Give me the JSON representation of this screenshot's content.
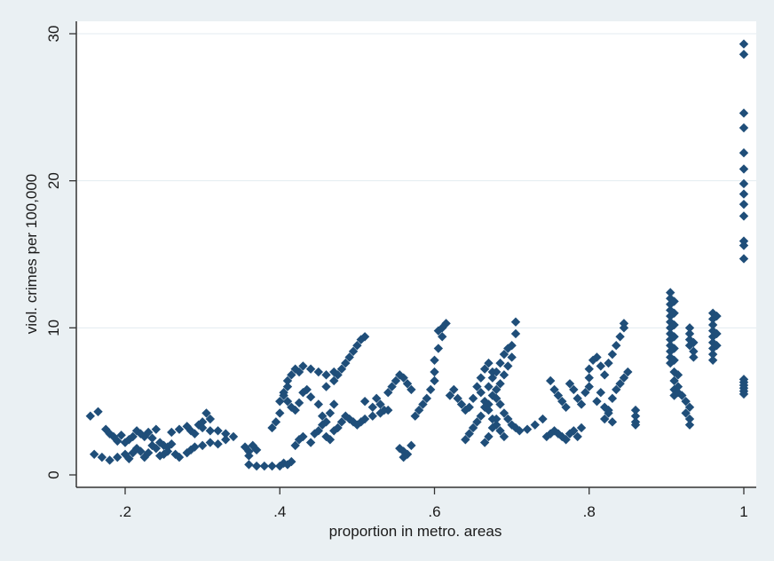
{
  "chart_data": {
    "type": "scatter",
    "title": "",
    "xlabel": "proportion in metro. areas",
    "ylabel": "viol. crimes per 100,000",
    "xlim": [
      0.15,
      1.0
    ],
    "ylim": [
      0,
      30
    ],
    "x_ticks": [
      {
        "value": 0.2,
        "label": ".2"
      },
      {
        "value": 0.4,
        "label": ".4"
      },
      {
        "value": 0.6,
        "label": ".6"
      },
      {
        "value": 0.8,
        "label": ".8"
      },
      {
        "value": 1.0,
        "label": "1"
      }
    ],
    "y_ticks": [
      {
        "value": 0,
        "label": "0"
      },
      {
        "value": 10,
        "label": "10"
      },
      {
        "value": 20,
        "label": "20"
      },
      {
        "value": 30,
        "label": "30"
      }
    ],
    "grid": "horizontal",
    "legend": "none",
    "marker": "diamond",
    "colors": {
      "marker": "#1f4e79",
      "plot_bg": "#ffffff",
      "frame_bg": "#eaf0f3",
      "grid": "#e3ebf0"
    },
    "points": [
      [
        0.155,
        4.0
      ],
      [
        0.165,
        4.3
      ],
      [
        0.16,
        1.4
      ],
      [
        0.17,
        1.2
      ],
      [
        0.18,
        1.0
      ],
      [
        0.19,
        1.2
      ],
      [
        0.175,
        3.1
      ],
      [
        0.18,
        2.8
      ],
      [
        0.185,
        2.6
      ],
      [
        0.19,
        2.3
      ],
      [
        0.195,
        2.7
      ],
      [
        0.2,
        2.2
      ],
      [
        0.205,
        2.4
      ],
      [
        0.21,
        2.6
      ],
      [
        0.215,
        3.0
      ],
      [
        0.22,
        2.8
      ],
      [
        0.2,
        1.4
      ],
      [
        0.205,
        1.1
      ],
      [
        0.21,
        1.5
      ],
      [
        0.215,
        1.8
      ],
      [
        0.22,
        1.6
      ],
      [
        0.225,
        1.2
      ],
      [
        0.23,
        1.5
      ],
      [
        0.235,
        2.0
      ],
      [
        0.24,
        1.8
      ],
      [
        0.245,
        1.3
      ],
      [
        0.25,
        1.4
      ],
      [
        0.255,
        1.6
      ],
      [
        0.225,
        2.6
      ],
      [
        0.23,
        2.9
      ],
      [
        0.235,
        2.5
      ],
      [
        0.24,
        3.1
      ],
      [
        0.245,
        2.2
      ],
      [
        0.25,
        2.0
      ],
      [
        0.255,
        1.9
      ],
      [
        0.26,
        2.1
      ],
      [
        0.265,
        1.4
      ],
      [
        0.27,
        1.2
      ],
      [
        0.28,
        1.5
      ],
      [
        0.285,
        1.7
      ],
      [
        0.29,
        1.9
      ],
      [
        0.3,
        2.0
      ],
      [
        0.31,
        2.2
      ],
      [
        0.32,
        2.1
      ],
      [
        0.33,
        2.4
      ],
      [
        0.26,
        2.9
      ],
      [
        0.27,
        3.1
      ],
      [
        0.28,
        3.3
      ],
      [
        0.285,
        3.0
      ],
      [
        0.29,
        2.8
      ],
      [
        0.295,
        3.4
      ],
      [
        0.3,
        3.6
      ],
      [
        0.305,
        4.2
      ],
      [
        0.31,
        3.8
      ],
      [
        0.3,
        3.2
      ],
      [
        0.31,
        3.0
      ],
      [
        0.32,
        3.0
      ],
      [
        0.33,
        2.8
      ],
      [
        0.34,
        2.6
      ],
      [
        0.355,
        1.9
      ],
      [
        0.36,
        1.6
      ],
      [
        0.36,
        1.3
      ],
      [
        0.365,
        2.0
      ],
      [
        0.37,
        1.7
      ],
      [
        0.36,
        0.7
      ],
      [
        0.37,
        0.6
      ],
      [
        0.38,
        0.6
      ],
      [
        0.39,
        0.6
      ],
      [
        0.4,
        0.6
      ],
      [
        0.405,
        0.8
      ],
      [
        0.41,
        0.7
      ],
      [
        0.415,
        0.9
      ],
      [
        0.39,
        3.2
      ],
      [
        0.395,
        3.6
      ],
      [
        0.4,
        4.2
      ],
      [
        0.4,
        5.0
      ],
      [
        0.405,
        5.6
      ],
      [
        0.41,
        6.0
      ],
      [
        0.41,
        6.4
      ],
      [
        0.415,
        6.8
      ],
      [
        0.42,
        7.2
      ],
      [
        0.425,
        7.0
      ],
      [
        0.43,
        7.4
      ],
      [
        0.44,
        7.2
      ],
      [
        0.45,
        7.0
      ],
      [
        0.46,
        6.8
      ],
      [
        0.47,
        7.0
      ],
      [
        0.405,
        5.4
      ],
      [
        0.41,
        5.0
      ],
      [
        0.415,
        4.6
      ],
      [
        0.42,
        4.4
      ],
      [
        0.425,
        4.9
      ],
      [
        0.43,
        5.6
      ],
      [
        0.435,
        5.8
      ],
      [
        0.44,
        5.3
      ],
      [
        0.45,
        4.8
      ],
      [
        0.455,
        4.0
      ],
      [
        0.46,
        3.6
      ],
      [
        0.465,
        4.2
      ],
      [
        0.47,
        4.8
      ],
      [
        0.42,
        2.0
      ],
      [
        0.425,
        2.4
      ],
      [
        0.43,
        2.6
      ],
      [
        0.44,
        2.2
      ],
      [
        0.445,
        2.8
      ],
      [
        0.45,
        3.0
      ],
      [
        0.455,
        3.4
      ],
      [
        0.46,
        2.6
      ],
      [
        0.465,
        2.4
      ],
      [
        0.47,
        3.0
      ],
      [
        0.475,
        3.2
      ],
      [
        0.48,
        3.6
      ],
      [
        0.485,
        4.0
      ],
      [
        0.49,
        3.8
      ],
      [
        0.495,
        3.6
      ],
      [
        0.5,
        3.4
      ],
      [
        0.505,
        3.6
      ],
      [
        0.51,
        3.8
      ],
      [
        0.52,
        4.0
      ],
      [
        0.53,
        4.2
      ],
      [
        0.54,
        4.4
      ],
      [
        0.46,
        6.0
      ],
      [
        0.47,
        6.4
      ],
      [
        0.475,
        6.8
      ],
      [
        0.48,
        7.2
      ],
      [
        0.485,
        7.6
      ],
      [
        0.49,
        8.0
      ],
      [
        0.495,
        8.4
      ],
      [
        0.5,
        8.8
      ],
      [
        0.505,
        9.2
      ],
      [
        0.51,
        9.4
      ],
      [
        0.51,
        5.0
      ],
      [
        0.52,
        4.6
      ],
      [
        0.525,
        5.2
      ],
      [
        0.53,
        4.8
      ],
      [
        0.535,
        4.4
      ],
      [
        0.54,
        5.6
      ],
      [
        0.545,
        6.0
      ],
      [
        0.55,
        6.4
      ],
      [
        0.555,
        6.8
      ],
      [
        0.56,
        6.6
      ],
      [
        0.565,
        6.2
      ],
      [
        0.57,
        5.8
      ],
      [
        0.555,
        1.8
      ],
      [
        0.56,
        1.6
      ],
      [
        0.565,
        1.4
      ],
      [
        0.56,
        1.2
      ],
      [
        0.57,
        2.0
      ],
      [
        0.575,
        4.0
      ],
      [
        0.58,
        4.4
      ],
      [
        0.585,
        4.8
      ],
      [
        0.59,
        5.2
      ],
      [
        0.595,
        5.8
      ],
      [
        0.6,
        6.4
      ],
      [
        0.6,
        7.0
      ],
      [
        0.6,
        7.8
      ],
      [
        0.605,
        8.6
      ],
      [
        0.61,
        9.4
      ],
      [
        0.61,
        10.0
      ],
      [
        0.615,
        10.3
      ],
      [
        0.605,
        9.8
      ],
      [
        0.62,
        5.4
      ],
      [
        0.625,
        5.8
      ],
      [
        0.63,
        5.2
      ],
      [
        0.635,
        4.8
      ],
      [
        0.64,
        4.4
      ],
      [
        0.645,
        4.6
      ],
      [
        0.65,
        5.2
      ],
      [
        0.655,
        6.0
      ],
      [
        0.66,
        6.6
      ],
      [
        0.665,
        7.2
      ],
      [
        0.67,
        7.6
      ],
      [
        0.675,
        7.0
      ],
      [
        0.64,
        2.4
      ],
      [
        0.645,
        2.8
      ],
      [
        0.65,
        3.2
      ],
      [
        0.655,
        3.6
      ],
      [
        0.66,
        4.0
      ],
      [
        0.665,
        4.6
      ],
      [
        0.67,
        4.8
      ],
      [
        0.675,
        5.4
      ],
      [
        0.68,
        5.8
      ],
      [
        0.685,
        6.2
      ],
      [
        0.69,
        6.8
      ],
      [
        0.695,
        7.4
      ],
      [
        0.7,
        8.0
      ],
      [
        0.7,
        8.8
      ],
      [
        0.705,
        9.6
      ],
      [
        0.705,
        10.4
      ],
      [
        0.66,
        5.6
      ],
      [
        0.665,
        5.0
      ],
      [
        0.67,
        4.4
      ],
      [
        0.675,
        3.8
      ],
      [
        0.68,
        3.4
      ],
      [
        0.685,
        3.0
      ],
      [
        0.69,
        2.6
      ],
      [
        0.665,
        2.2
      ],
      [
        0.67,
        2.6
      ],
      [
        0.675,
        3.2
      ],
      [
        0.68,
        3.8
      ],
      [
        0.67,
        6.0
      ],
      [
        0.675,
        6.6
      ],
      [
        0.68,
        7.0
      ],
      [
        0.685,
        7.6
      ],
      [
        0.69,
        8.2
      ],
      [
        0.695,
        8.6
      ],
      [
        0.68,
        5.2
      ],
      [
        0.685,
        4.8
      ],
      [
        0.69,
        4.2
      ],
      [
        0.695,
        3.8
      ],
      [
        0.7,
        3.4
      ],
      [
        0.705,
        3.2
      ],
      [
        0.71,
        3.0
      ],
      [
        0.72,
        3.1
      ],
      [
        0.73,
        3.4
      ],
      [
        0.74,
        3.8
      ],
      [
        0.75,
        6.4
      ],
      [
        0.755,
        5.8
      ],
      [
        0.76,
        5.4
      ],
      [
        0.765,
        5.0
      ],
      [
        0.77,
        4.6
      ],
      [
        0.775,
        6.2
      ],
      [
        0.78,
        5.8
      ],
      [
        0.785,
        5.2
      ],
      [
        0.79,
        4.8
      ],
      [
        0.795,
        5.6
      ],
      [
        0.8,
        6.0
      ],
      [
        0.8,
        6.6
      ],
      [
        0.745,
        2.6
      ],
      [
        0.75,
        2.8
      ],
      [
        0.755,
        3.0
      ],
      [
        0.76,
        2.8
      ],
      [
        0.765,
        2.6
      ],
      [
        0.77,
        2.4
      ],
      [
        0.775,
        2.8
      ],
      [
        0.78,
        3.0
      ],
      [
        0.785,
        2.6
      ],
      [
        0.79,
        3.2
      ],
      [
        0.8,
        7.2
      ],
      [
        0.805,
        7.8
      ],
      [
        0.81,
        8.0
      ],
      [
        0.815,
        7.4
      ],
      [
        0.82,
        6.8
      ],
      [
        0.825,
        7.6
      ],
      [
        0.83,
        8.2
      ],
      [
        0.835,
        8.8
      ],
      [
        0.84,
        9.4
      ],
      [
        0.845,
        10.0
      ],
      [
        0.845,
        10.3
      ],
      [
        0.81,
        5.0
      ],
      [
        0.815,
        5.6
      ],
      [
        0.82,
        4.6
      ],
      [
        0.825,
        4.2
      ],
      [
        0.83,
        5.2
      ],
      [
        0.835,
        5.8
      ],
      [
        0.84,
        6.2
      ],
      [
        0.845,
        6.6
      ],
      [
        0.85,
        7.0
      ],
      [
        0.82,
        3.8
      ],
      [
        0.825,
        4.4
      ],
      [
        0.83,
        3.6
      ],
      [
        0.86,
        4.4
      ],
      [
        0.86,
        4.0
      ],
      [
        0.86,
        3.6
      ],
      [
        0.86,
        3.4
      ],
      [
        0.905,
        12.4
      ],
      [
        0.905,
        12.0
      ],
      [
        0.905,
        11.6
      ],
      [
        0.905,
        11.2
      ],
      [
        0.905,
        10.8
      ],
      [
        0.905,
        10.4
      ],
      [
        0.905,
        10.0
      ],
      [
        0.905,
        9.6
      ],
      [
        0.905,
        9.2
      ],
      [
        0.905,
        8.8
      ],
      [
        0.905,
        8.4
      ],
      [
        0.905,
        8.0
      ],
      [
        0.905,
        7.6
      ],
      [
        0.91,
        11.8
      ],
      [
        0.91,
        11.0
      ],
      [
        0.91,
        10.2
      ],
      [
        0.91,
        9.4
      ],
      [
        0.91,
        8.6
      ],
      [
        0.91,
        7.8
      ],
      [
        0.91,
        7.0
      ],
      [
        0.91,
        6.4
      ],
      [
        0.91,
        5.8
      ],
      [
        0.91,
        5.4
      ],
      [
        0.915,
        6.0
      ],
      [
        0.915,
        5.6
      ],
      [
        0.915,
        6.8
      ],
      [
        0.92,
        5.4
      ],
      [
        0.925,
        5.0
      ],
      [
        0.93,
        4.6
      ],
      [
        0.925,
        4.2
      ],
      [
        0.93,
        3.8
      ],
      [
        0.93,
        3.4
      ],
      [
        0.93,
        10.0
      ],
      [
        0.93,
        9.6
      ],
      [
        0.93,
        9.2
      ],
      [
        0.93,
        8.8
      ],
      [
        0.935,
        8.4
      ],
      [
        0.935,
        8.0
      ],
      [
        0.935,
        9.0
      ],
      [
        0.96,
        11.0
      ],
      [
        0.96,
        10.6
      ],
      [
        0.96,
        10.2
      ],
      [
        0.96,
        9.8
      ],
      [
        0.96,
        9.4
      ],
      [
        0.96,
        9.0
      ],
      [
        0.96,
        8.6
      ],
      [
        0.96,
        8.2
      ],
      [
        0.96,
        7.8
      ],
      [
        0.965,
        10.8
      ],
      [
        0.965,
        9.6
      ],
      [
        0.965,
        8.8
      ],
      [
        1.0,
        29.3
      ],
      [
        1.0,
        28.6
      ],
      [
        1.0,
        24.6
      ],
      [
        1.0,
        23.6
      ],
      [
        1.0,
        21.9
      ],
      [
        1.0,
        20.8
      ],
      [
        1.0,
        19.8
      ],
      [
        1.0,
        19.1
      ],
      [
        1.0,
        18.4
      ],
      [
        1.0,
        17.6
      ],
      [
        1.0,
        15.9
      ],
      [
        1.0,
        15.6
      ],
      [
        1.0,
        14.7
      ],
      [
        1.0,
        6.5
      ],
      [
        1.0,
        6.3
      ],
      [
        1.0,
        6.1
      ],
      [
        1.0,
        5.9
      ],
      [
        1.0,
        5.7
      ],
      [
        1.0,
        5.5
      ]
    ]
  }
}
